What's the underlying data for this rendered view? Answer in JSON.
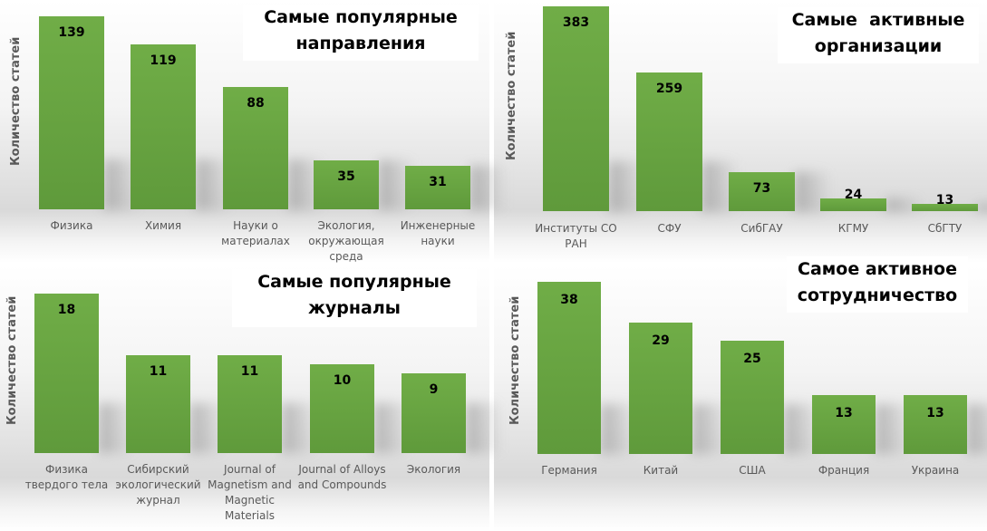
{
  "chart_data": [
    {
      "type": "bar",
      "title": "Самые популярные направления",
      "title_lines": [
        "Самые популярные",
        "направления"
      ],
      "ylabel": "Количество статей",
      "categories": [
        "Физика",
        "Химия",
        "Науки о\nматериалах",
        "Экология,\nокружающая\nсреда",
        "Инженерные\nнауки"
      ],
      "values": [
        139,
        119,
        88,
        35,
        31
      ],
      "bar_color": "#70ad47"
    },
    {
      "type": "bar",
      "title": "Самые  активные организации",
      "title_lines": [
        "Самые  активные",
        "организации"
      ],
      "ylabel": "Количество статей",
      "categories": [
        "Институты СО\nРАН",
        "СФУ",
        "СибГАУ",
        "КГМУ",
        "СбГТУ"
      ],
      "values": [
        383,
        259,
        73,
        24,
        13
      ],
      "bar_color": "#70ad47"
    },
    {
      "type": "bar",
      "title": "Самые популярные журналы",
      "title_lines": [
        "Самые популярные",
        "журналы"
      ],
      "ylabel": "Количество статей",
      "categories": [
        "Физика\nтвердого тела",
        "Сибирский\nэкологический\nжурнал",
        "Journal of\nMagnetism and\nMagnetic\nMaterials",
        "Journal of Alloys\nand Compounds",
        "Экология"
      ],
      "values": [
        18,
        11,
        11,
        10,
        9
      ],
      "bar_color": "#70ad47"
    },
    {
      "type": "bar",
      "title": "Самое активное сотрудничество",
      "title_lines": [
        "Самое активное",
        "сотрудничество"
      ],
      "ylabel": "Количество статей",
      "categories": [
        "Германия",
        "Китай",
        "США",
        "Франция",
        "Украина"
      ],
      "values": [
        38,
        29,
        25,
        13,
        13
      ],
      "bar_color": "#70ad47"
    }
  ]
}
